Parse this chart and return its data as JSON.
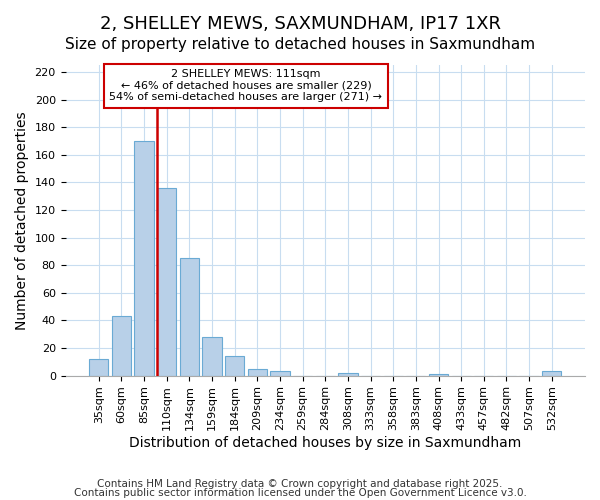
{
  "title": "2, SHELLEY MEWS, SAXMUNDHAM, IP17 1XR",
  "subtitle": "Size of property relative to detached houses in Saxmundham",
  "xlabel": "Distribution of detached houses by size in Saxmundham",
  "ylabel": "Number of detached properties",
  "bar_labels": [
    "35sqm",
    "60sqm",
    "85sqm",
    "110sqm",
    "134sqm",
    "159sqm",
    "184sqm",
    "209sqm",
    "234sqm",
    "259sqm",
    "284sqm",
    "308sqm",
    "333sqm",
    "358sqm",
    "383sqm",
    "408sqm",
    "433sqm",
    "457sqm",
    "482sqm",
    "507sqm",
    "532sqm"
  ],
  "bar_values": [
    12,
    43,
    170,
    136,
    85,
    28,
    14,
    5,
    3,
    0,
    0,
    2,
    0,
    0,
    0,
    1,
    0,
    0,
    0,
    0,
    3
  ],
  "bar_color": "#b8d0e8",
  "bar_edge_color": "#6aaad4",
  "vline_x": 3,
  "vline_color": "#cc0000",
  "annotation_title": "2 SHELLEY MEWS: 111sqm",
  "annotation_line1": "← 46% of detached houses are smaller (229)",
  "annotation_line2": "54% of semi-detached houses are larger (271) →",
  "annotation_box_color": "#ffffff",
  "annotation_box_edge": "#cc0000",
  "ylim": [
    0,
    225
  ],
  "yticks": [
    0,
    20,
    40,
    60,
    80,
    100,
    120,
    140,
    160,
    180,
    200,
    220
  ],
  "footer1": "Contains HM Land Registry data © Crown copyright and database right 2025.",
  "footer2": "Contains public sector information licensed under the Open Government Licence v3.0.",
  "bg_color": "#ffffff",
  "grid_color": "#c8ddf0",
  "title_fontsize": 13,
  "subtitle_fontsize": 11,
  "tick_fontsize": 8,
  "label_fontsize": 10,
  "footer_fontsize": 7.5
}
